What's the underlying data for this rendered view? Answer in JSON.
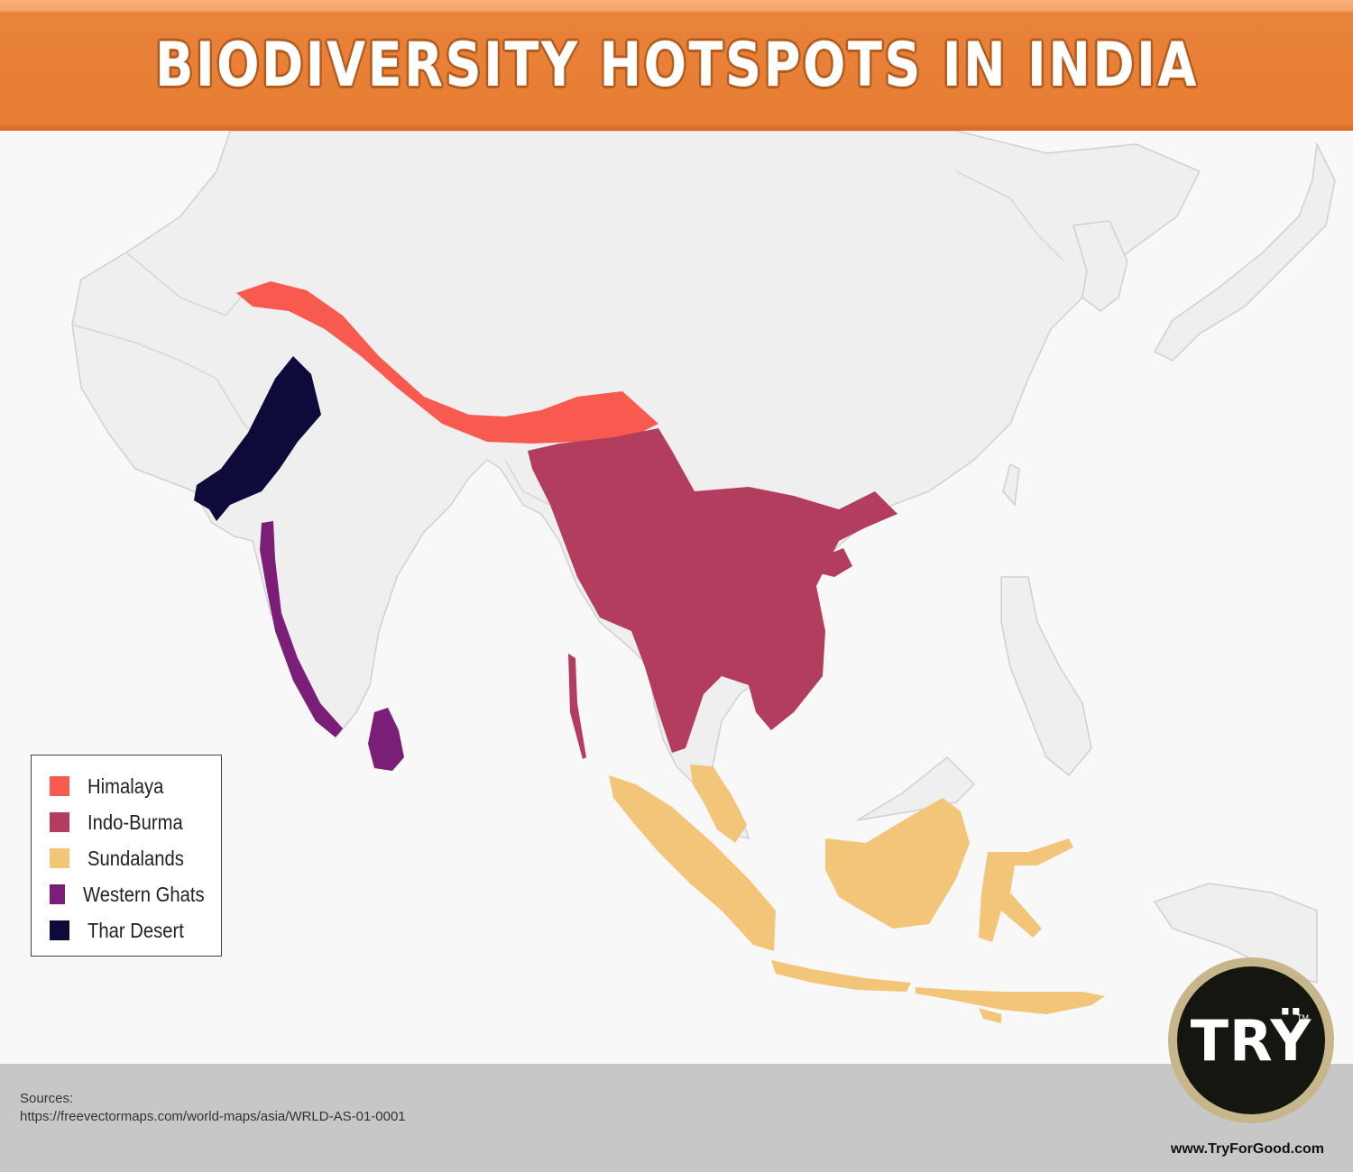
{
  "title": "BIODIVERSITY HOTSPOTS IN INDIA",
  "legend": [
    {
      "label": "Himalaya",
      "color": "#f95a50"
    },
    {
      "label": "Indo-Burma",
      "color": "#b23d5e"
    },
    {
      "label": "Sundalands",
      "color": "#f2c578"
    },
    {
      "label": "Western Ghats",
      "color": "#7a1e78"
    },
    {
      "label": "Thar Desert",
      "color": "#0e0a3a"
    }
  ],
  "colors": {
    "land": "#efefef",
    "border": "#d0d0d0",
    "sea": "#f8f8f8",
    "header": "#e67e33",
    "footer": "#c7c7c7"
  },
  "footer": {
    "sources_label": "Sources:",
    "sources_url": "https://freevectormaps.com/world-maps/asia/WRLD-AS-01-0001",
    "website": "www.TryForGood.com"
  },
  "logo": {
    "text": "TRŸ",
    "tm": "TM"
  }
}
